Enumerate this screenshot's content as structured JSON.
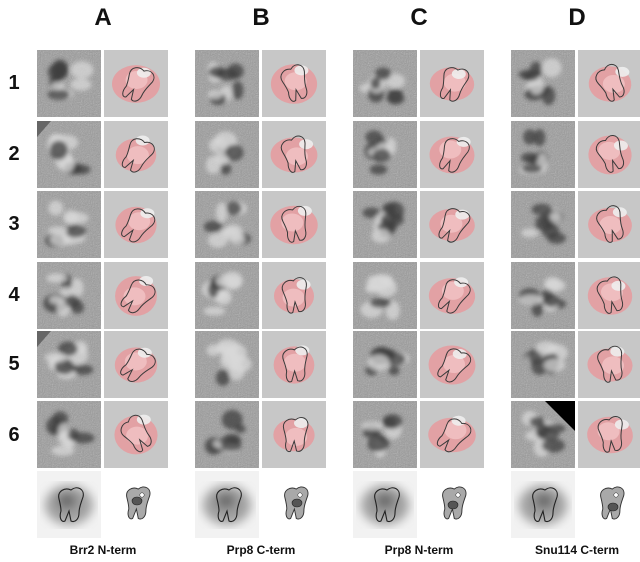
{
  "figure": {
    "column_letters": [
      "A",
      "B",
      "C",
      "D"
    ],
    "row_numbers": [
      "1",
      "2",
      "3",
      "4",
      "5",
      "6"
    ],
    "column_captions": [
      "Brr2 N-term",
      "Prp8 C-term",
      "Prp8 N-term",
      "Snu114 C-term"
    ]
  },
  "colors": {
    "panel_gray": "#c7c7c7",
    "density_fill": "#e69a9e",
    "outline": "#3a3a3a",
    "noise_gray": "#8a8a8a"
  }
}
